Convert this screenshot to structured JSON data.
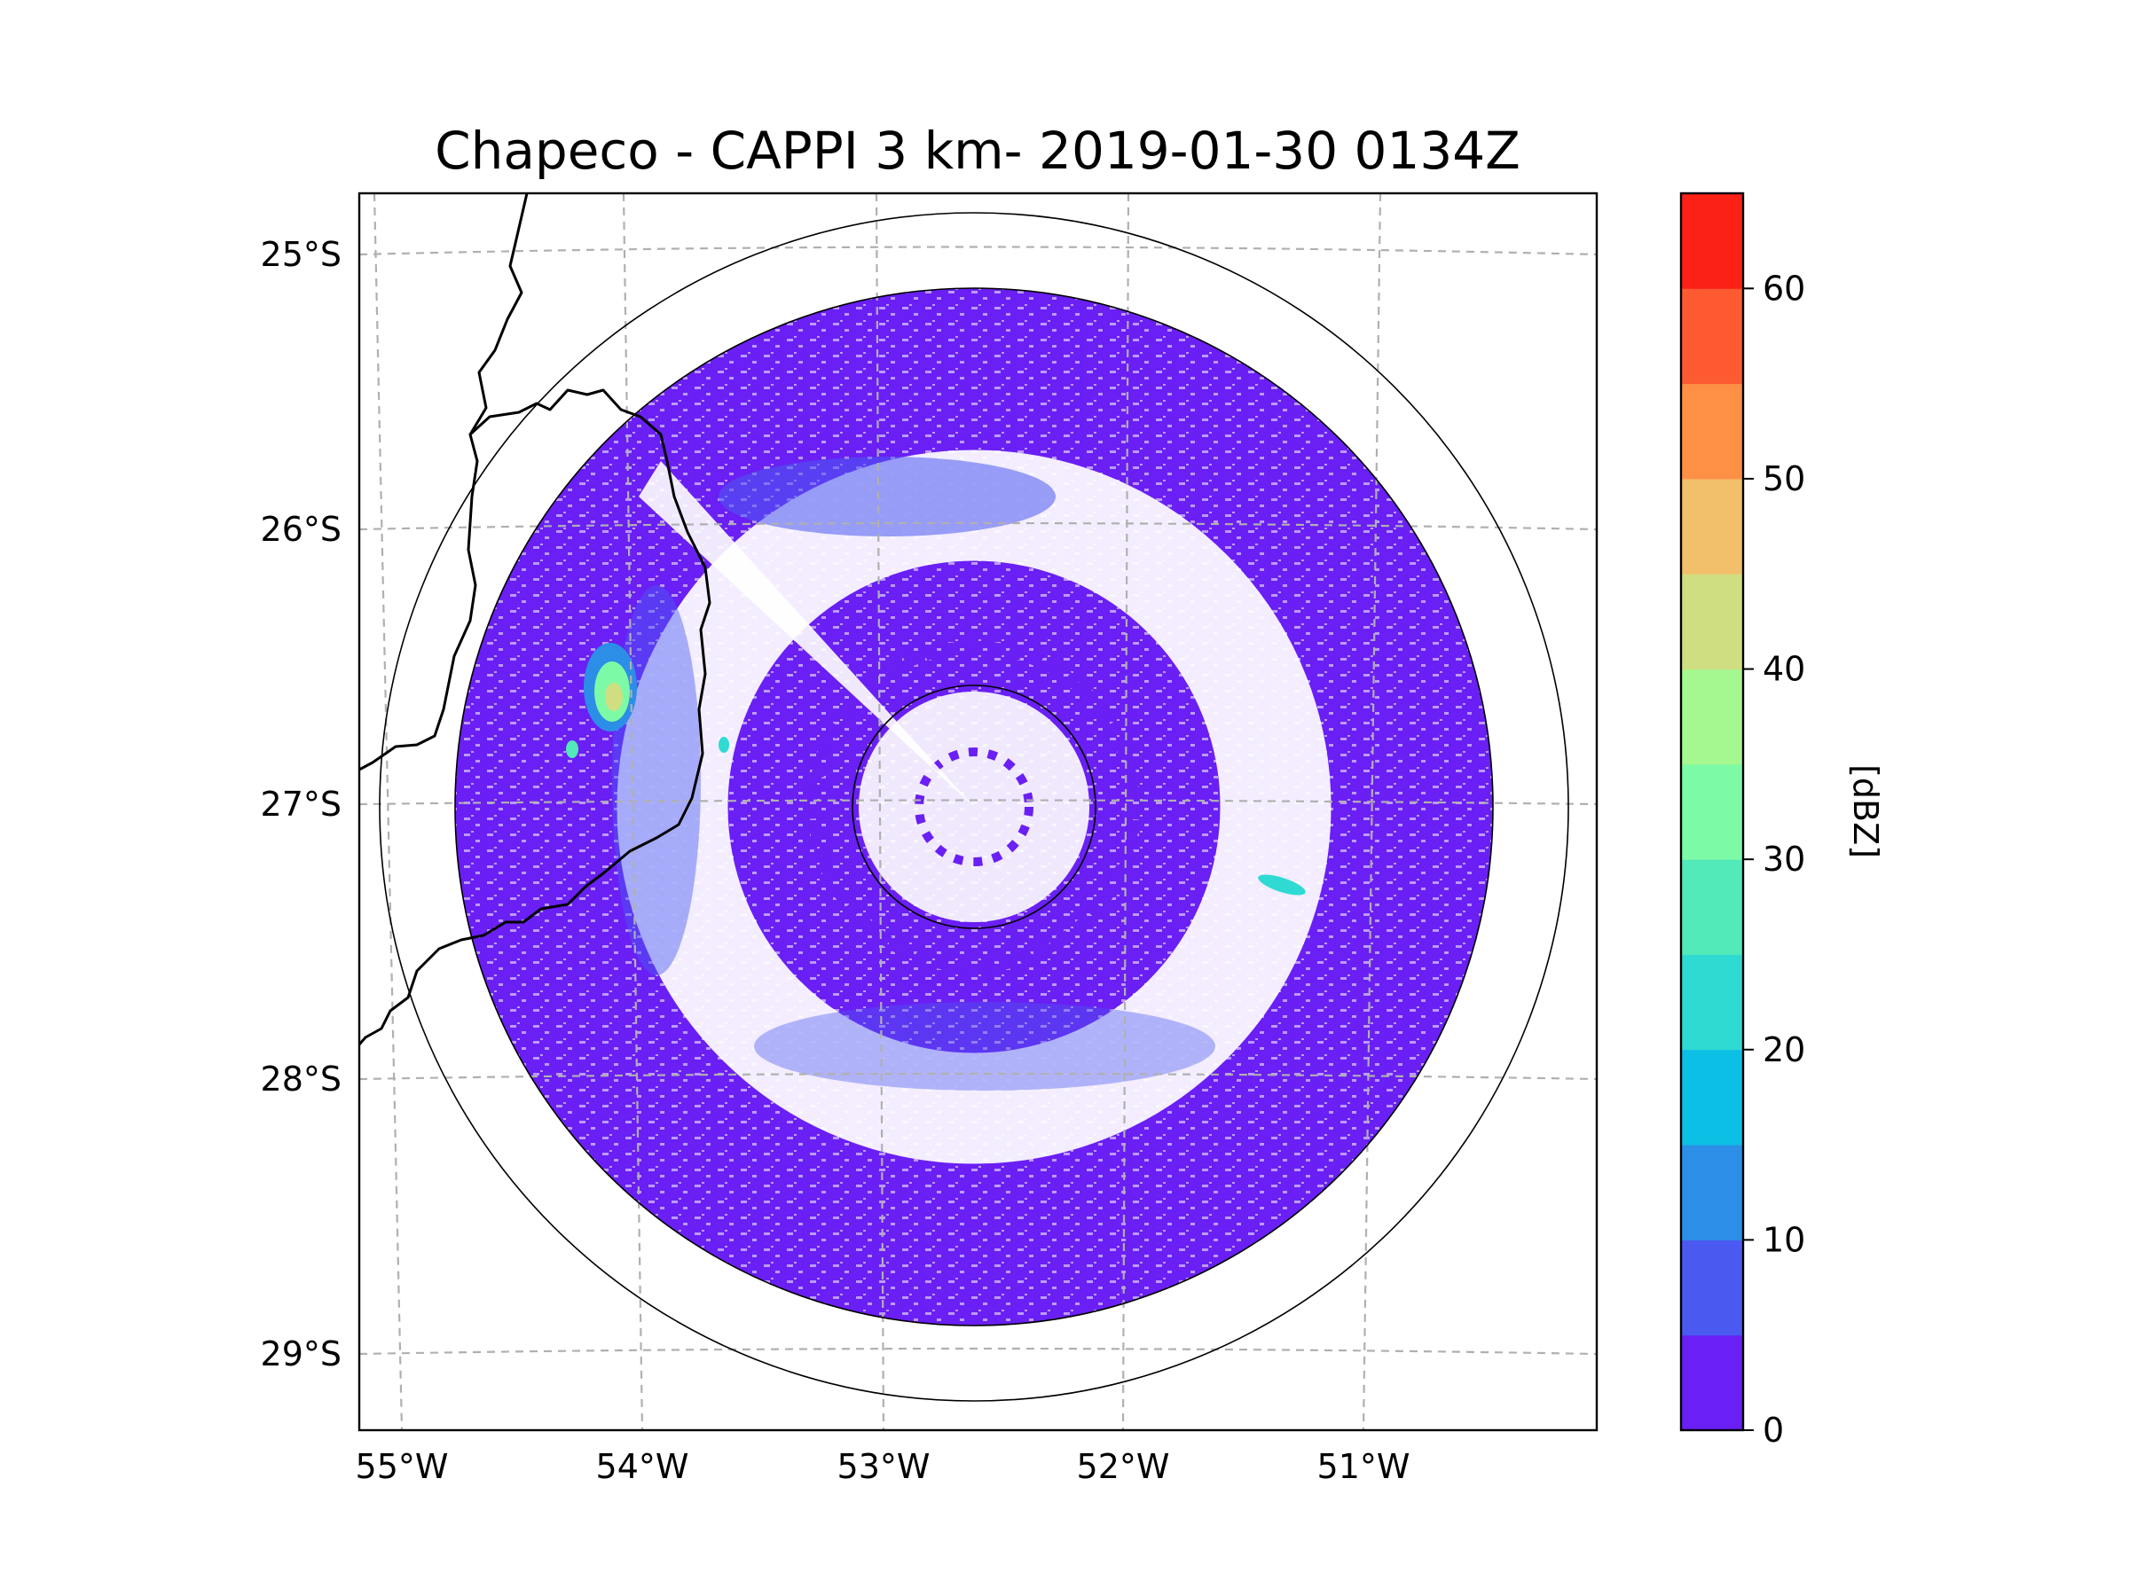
{
  "chart_data": {
    "type": "heatmap",
    "subtype": "radar CAPPI (polar reflectivity map)",
    "title": "Chapeco - CAPPI 3 km- 2019-01-30 0134Z",
    "x_ticks": [
      "55°W",
      "54°W",
      "53°W",
      "52°W",
      "51°W"
    ],
    "y_ticks": [
      "25°S",
      "26°S",
      "27°S",
      "28°S",
      "29°S"
    ],
    "lon_range": [
      -55.2,
      -50.1
    ],
    "lat_range": [
      -29.3,
      -24.8
    ],
    "grid": true,
    "radar_site": {
      "name": "Chapeco",
      "lon": -52.6,
      "lat": -27.03
    },
    "range_rings_deg": [
      0.5,
      1.9,
      2.5
    ],
    "data_extent_deg": 1.9,
    "colorbar": {
      "label": "[dBZ]",
      "min": 0,
      "max": 65,
      "tick_values": [
        0,
        10,
        20,
        30,
        40,
        50,
        60
      ],
      "tick_labels": [
        "0",
        "10",
        "20",
        "30",
        "40",
        "50",
        "60"
      ],
      "bins": [
        {
          "from": 0,
          "to": 5,
          "color": "#6a1ff4"
        },
        {
          "from": 5,
          "to": 10,
          "color": "#4a5af1"
        },
        {
          "from": 10,
          "to": 15,
          "color": "#2c8ee6"
        },
        {
          "from": 15,
          "to": 20,
          "color": "#0cbfe4"
        },
        {
          "from": 20,
          "to": 25,
          "color": "#2fdad3"
        },
        {
          "from": 25,
          "to": 30,
          "color": "#52eab9"
        },
        {
          "from": 30,
          "to": 35,
          "color": "#7dfaa6"
        },
        {
          "from": 35,
          "to": 40,
          "color": "#a5f78f"
        },
        {
          "from": 40,
          "to": 45,
          "color": "#d0de82"
        },
        {
          "from": 45,
          "to": 50,
          "color": "#f2c06a"
        },
        {
          "from": 50,
          "to": 55,
          "color": "#fe9046"
        },
        {
          "from": 55,
          "to": 60,
          "color": "#fe5a32"
        },
        {
          "from": 60,
          "to": 65,
          "color": "#fc2116"
        }
      ]
    },
    "features": [
      {
        "name": "convective cell",
        "lon": -54.1,
        "lat": -26.6,
        "dbz_max": 45
      },
      {
        "name": "echo streak",
        "lon": -51.3,
        "lat": -27.3,
        "dbz_max": 25
      }
    ]
  }
}
